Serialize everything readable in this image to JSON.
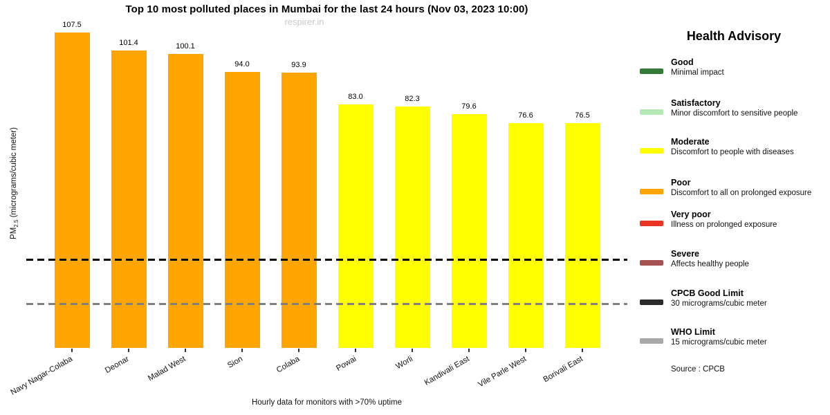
{
  "header": {
    "title": "Top 10 most polluted places in Mumbai for the last 24 hours (Nov 03, 2023 10:00)",
    "watermark": "respirer.in"
  },
  "chart_data": {
    "type": "bar",
    "title": "Top 10 most polluted places in Mumbai for the last 24 hours (Nov 03, 2023 10:00)",
    "categories": [
      "Navy Nagar-Colaba",
      "Deonar",
      "Malad West",
      "Sion",
      "Colaba",
      "Powai",
      "Worli",
      "Kandivali East",
      "Vile Parle West",
      "Borivali East"
    ],
    "values": [
      107.5,
      101.4,
      100.1,
      94.0,
      93.9,
      83.0,
      82.3,
      79.6,
      76.6,
      76.5
    ],
    "bar_colors": [
      "#ffa500",
      "#ffa500",
      "#ffa500",
      "#ffa500",
      "#ffa500",
      "#ffff00",
      "#ffff00",
      "#ffff00",
      "#ffff00",
      "#ffff00"
    ],
    "xlabel": "Hourly data for monitors with >70% uptime",
    "ylabel": "PM2.5 (micrograms/cubic meter)",
    "ylabel_parts": {
      "prefix": "PM",
      "sub": "2.5",
      "suffix": " (micrograms/cubic meter)"
    },
    "ylim": [
      0,
      115
    ],
    "grid": false,
    "legend_position": "right",
    "reference_lines": [
      {
        "label": "CPCB Good Limit",
        "value": 30,
        "color": "#000000",
        "style": "dashed"
      },
      {
        "label": "WHO Limit",
        "value": 15,
        "color": "#808080",
        "style": "dashed"
      }
    ]
  },
  "legend": {
    "title": "Health Advisory",
    "items": [
      {
        "label": "Good",
        "desc": "Minimal impact",
        "color": "#337b37"
      },
      {
        "label": "Satisfactory",
        "desc": "Minor discomfort to sensitive people",
        "color": "#b5e8b5"
      },
      {
        "label": "Moderate",
        "desc": "Discomfort to people with diseases",
        "color": "#ffff00"
      },
      {
        "label": "Poor",
        "desc": "Discomfort to all on prolonged exposure",
        "color": "#ffa500"
      },
      {
        "label": "Very poor",
        "desc": "Illness on prolonged exposure",
        "color": "#ea3423"
      },
      {
        "label": "Severe",
        "desc": "Affects healthy people",
        "color": "#a75252"
      },
      {
        "label": "CPCB Good Limit",
        "desc": "30 micrograms/cubic meter",
        "color": "#2b2b2b"
      },
      {
        "label": "WHO Limit",
        "desc": "15 micrograms/cubic meter",
        "color": "#a8a8a8"
      }
    ],
    "source": "Source : CPCB"
  }
}
